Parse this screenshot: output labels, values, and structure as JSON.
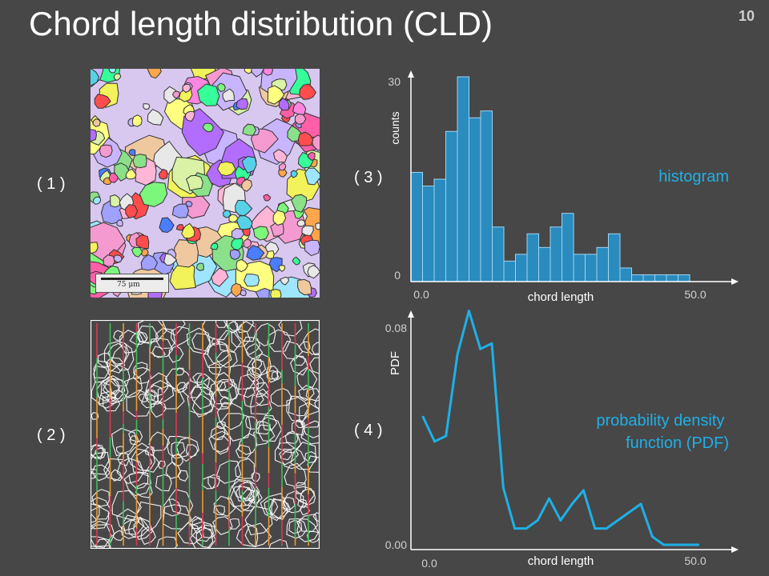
{
  "title": "Chord length distribution (CLD)",
  "page_number": "10",
  "panel_labels": [
    "( 1 )",
    "( 2 )",
    "( 3 )",
    "( 4 )"
  ],
  "micrograph": {
    "scale_label": "75 μm"
  },
  "colors": {
    "background": "#474747",
    "accent": "#1fb0e8",
    "histogram_bar": "#2a8bbf",
    "chord_colors": [
      "#e0364f",
      "#3fbf5a",
      "#f09a2a"
    ]
  },
  "chart_data": [
    {
      "type": "bar",
      "note": "histogram",
      "xlabel": "chord length",
      "ylabel": "counts",
      "x_ticks": [
        "0.0",
        "50.0"
      ],
      "y_ticks": [
        "0",
        "30"
      ],
      "xlim": [
        0,
        52
      ],
      "ylim": [
        0,
        30
      ],
      "bin_width": 2,
      "values": [
        16,
        14,
        15,
        22,
        30,
        24,
        25,
        8,
        3,
        4,
        7,
        5,
        8,
        10,
        4,
        4,
        5,
        7,
        2,
        1,
        1,
        1,
        1,
        1
      ]
    },
    {
      "type": "line",
      "note": "probability density\nfunction (PDF)",
      "xlabel": "chord length",
      "ylabel": "PDF",
      "x_ticks": [
        "0.0",
        "50.0"
      ],
      "y_ticks": [
        "0.00",
        "0.08"
      ],
      "xlim": [
        0,
        52
      ],
      "ylim": [
        0,
        0.08
      ],
      "x": [
        1,
        3,
        5,
        7,
        9,
        11,
        13,
        15,
        17,
        19,
        21,
        23,
        25,
        27,
        29,
        31,
        33,
        35,
        37,
        39,
        41,
        43,
        45,
        47,
        49
      ],
      "y": [
        0.047,
        0.038,
        0.04,
        0.07,
        0.086,
        0.072,
        0.074,
        0.021,
        0.006,
        0.006,
        0.009,
        0.017,
        0.009,
        0.015,
        0.02,
        0.006,
        0.006,
        0.009,
        0.012,
        0.015,
        0.003,
        0.0,
        0.0,
        0.0,
        0.0
      ]
    }
  ]
}
